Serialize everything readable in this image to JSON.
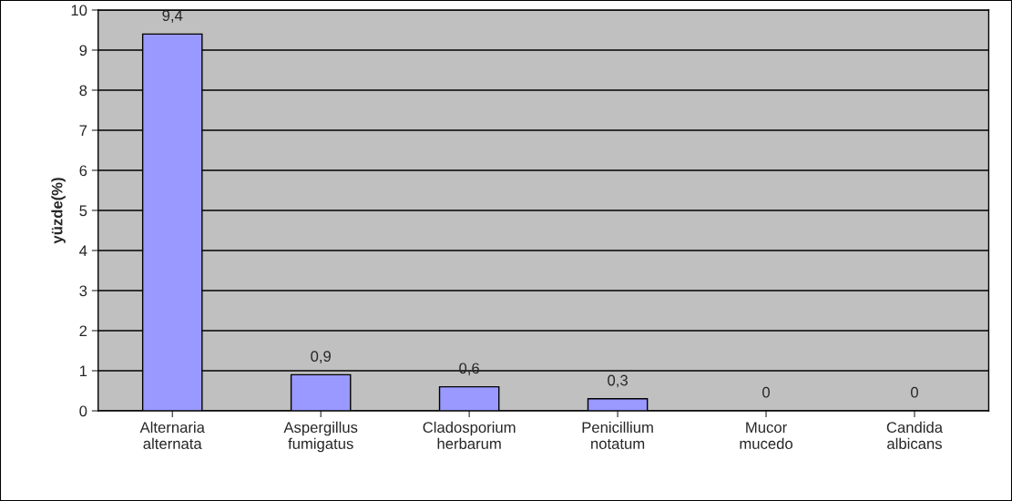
{
  "chart_data": {
    "type": "bar",
    "ylabel": "yüzde(%)",
    "categories": [
      "Alternaria\nalternata",
      "Aspergillus\nfumigatus",
      "Cladosporium\nherbarum",
      "Penicillium\nnotatum",
      "Mucor\nmucedo",
      "Candida\nalbicans"
    ],
    "values": [
      9.4,
      0.9,
      0.6,
      0.3,
      0,
      0
    ],
    "value_labels": [
      "9,4",
      "0,9",
      "0,6",
      "0,3",
      "0",
      "0"
    ],
    "color": "#9999ff",
    "ylim": [
      0,
      10
    ],
    "yticks": [
      0,
      1,
      2,
      3,
      4,
      5,
      6,
      7,
      8,
      9,
      10
    ],
    "grid": "y",
    "legend": false
  }
}
